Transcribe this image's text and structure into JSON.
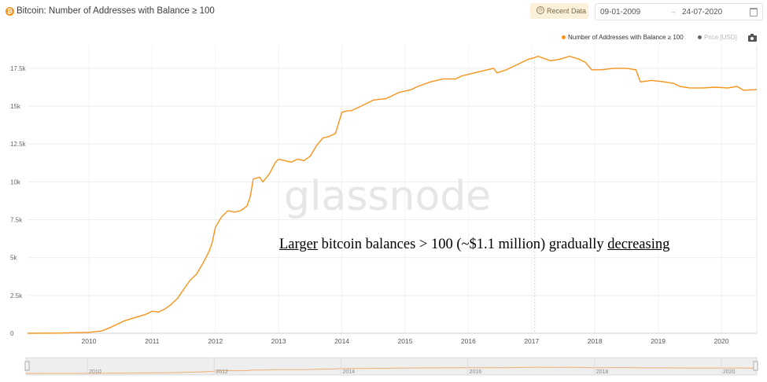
{
  "header": {
    "title": "Bitcoin: Number of Addresses with Balance ≥ 100",
    "recent_data_label": "Recent Data",
    "date_from": "09-01-2009",
    "date_to": "24-07-2020"
  },
  "legend": {
    "series_label": "Number of Addresses with Balance ≥ 100",
    "price_label": "Price [USD]"
  },
  "watermark": "glassnode",
  "annotation": {
    "word1": "Larger",
    "middle": " bitcoin balances > 100 (~$1.1 million) gradually ",
    "word2": "decreasing"
  },
  "colors": {
    "series": "#f7931a",
    "price_dot": "#666666",
    "crosshair": "#cccccc"
  },
  "chart_data": {
    "type": "line",
    "title": "Bitcoin: Number of Addresses with Balance ≥ 100",
    "xlabel": "",
    "ylabel": "",
    "x_ticks": [
      "2010",
      "2011",
      "2012",
      "2013",
      "2014",
      "2015",
      "2016",
      "2017",
      "2018",
      "2019",
      "2020"
    ],
    "y_ticks": [
      "0",
      "2.5k",
      "5k",
      "7.5k",
      "10k",
      "12.5k",
      "15k",
      "17.5k"
    ],
    "xlim": [
      2009.03,
      2020.56
    ],
    "ylim": [
      0,
      19000
    ],
    "grid": true,
    "legend_position": "top-right",
    "navigator_ticks": [
      "2010",
      "2012",
      "2014",
      "2016",
      "2018",
      "2020"
    ],
    "series": [
      {
        "name": "Number of Addresses with Balance ≥ 100",
        "x": [
          2009.03,
          2009.5,
          2010.0,
          2010.2,
          2010.35,
          2010.5,
          2010.55,
          2010.7,
          2010.9,
          2011.0,
          2011.1,
          2011.2,
          2011.3,
          2011.4,
          2011.5,
          2011.6,
          2011.7,
          2011.8,
          2011.9,
          2011.95,
          2012.0,
          2012.1,
          2012.2,
          2012.3,
          2012.4,
          2012.5,
          2012.55,
          2012.6,
          2012.7,
          2012.75,
          2012.85,
          2012.95,
          2013.0,
          2013.1,
          2013.2,
          2013.3,
          2013.4,
          2013.5,
          2013.6,
          2013.7,
          2013.8,
          2013.9,
          2014.0,
          2014.1,
          2014.15,
          2014.2,
          2014.3,
          2014.5,
          2014.7,
          2014.9,
          2015.1,
          2015.2,
          2015.4,
          2015.6,
          2015.8,
          2015.9,
          2016.0,
          2016.2,
          2016.4,
          2016.45,
          2016.6,
          2016.8,
          2016.95,
          2017.05,
          2017.1,
          2017.3,
          2017.45,
          2017.6,
          2017.75,
          2017.85,
          2017.95,
          2018.1,
          2018.3,
          2018.5,
          2018.65,
          2018.72,
          2018.9,
          2019.1,
          2019.25,
          2019.35,
          2019.5,
          2019.7,
          2019.9,
          2020.1,
          2020.25,
          2020.35,
          2020.56
        ],
        "y": [
          0,
          10,
          60,
          150,
          400,
          700,
          800,
          1000,
          1250,
          1450,
          1400,
          1600,
          1900,
          2300,
          2900,
          3500,
          3900,
          4600,
          5400,
          6000,
          7000,
          7700,
          8100,
          8000,
          8100,
          8400,
          9000,
          10200,
          10300,
          10000,
          10500,
          11300,
          11500,
          11400,
          11300,
          11500,
          11400,
          11700,
          12400,
          12900,
          13000,
          13200,
          14600,
          14700,
          14700,
          14800,
          15000,
          15400,
          15500,
          15900,
          16100,
          16300,
          16600,
          16800,
          16800,
          17000,
          17100,
          17300,
          17500,
          17200,
          17400,
          17800,
          18100,
          18200,
          18300,
          18000,
          18100,
          18300,
          18100,
          17900,
          17400,
          17400,
          17500,
          17500,
          17400,
          16600,
          16700,
          16600,
          16500,
          16300,
          16200,
          16200,
          16250,
          16200,
          16300,
          16050,
          16100
        ]
      }
    ]
  }
}
